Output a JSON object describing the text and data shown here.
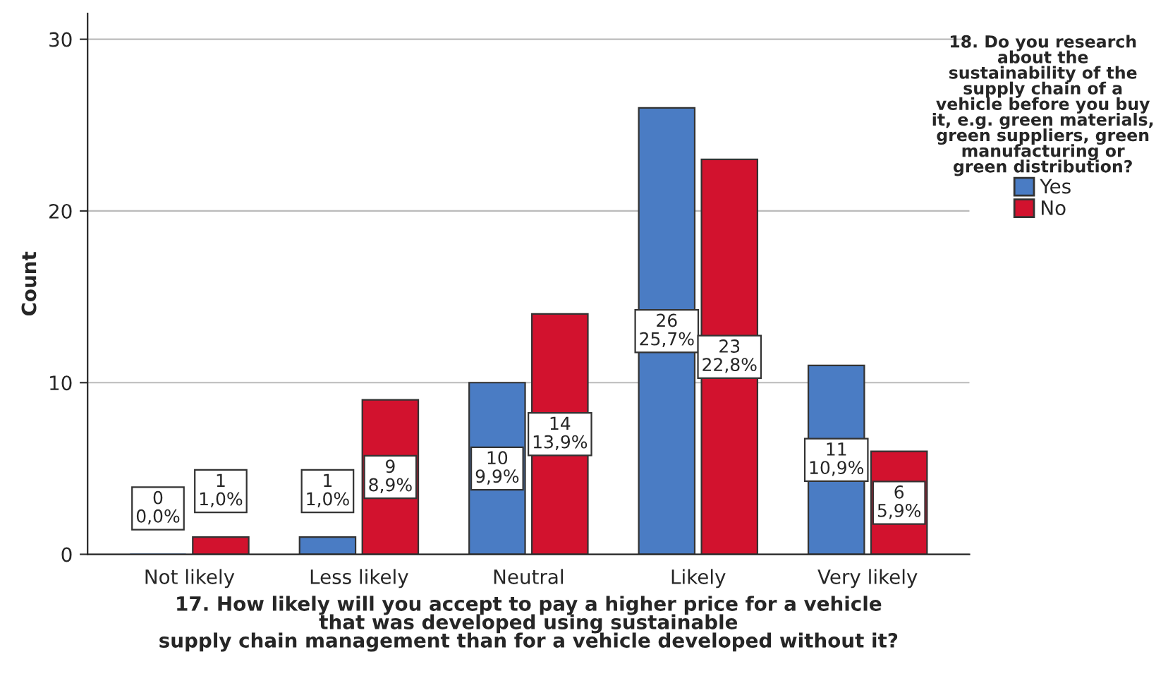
{
  "chart_data": {
    "type": "bar",
    "xlabel": "17. How likely will you accept to pay a higher price for a vehicle\nthat was developed using sustainable\nsupply chain management than for a vehicle developed without it?",
    "ylabel": "Count",
    "legend_title": "18. Do you research\nabout the\nsustainability of the\nsupply chain of a\nvehicle before you buy\nit, e.g. green materials,\ngreen suppliers, green\nmanufacturing or\ngreen distribution?",
    "categories": [
      "Not likely",
      "Less likely",
      "Neutral",
      "Likely",
      "Very likely"
    ],
    "series": [
      {
        "name": "Yes",
        "color": "#4a7cc4",
        "values": [
          0,
          1,
          10,
          26,
          11
        ],
        "value_labels": [
          "0\n0,0%",
          "1\n1,0%",
          "10\n9,9%",
          "26\n25,7%",
          "11\n10,9%"
        ]
      },
      {
        "name": "No",
        "color": "#d2122e",
        "values": [
          1,
          9,
          14,
          23,
          6
        ],
        "value_labels": [
          "1\n1,0%",
          "9\n8,9%",
          "14\n13,9%",
          "23\n22,8%",
          "6\n5,9%"
        ]
      }
    ],
    "ylim": [
      0,
      31.5
    ],
    "yticks": [
      0,
      10,
      20,
      30
    ],
    "grid": "y",
    "legend": "right"
  }
}
